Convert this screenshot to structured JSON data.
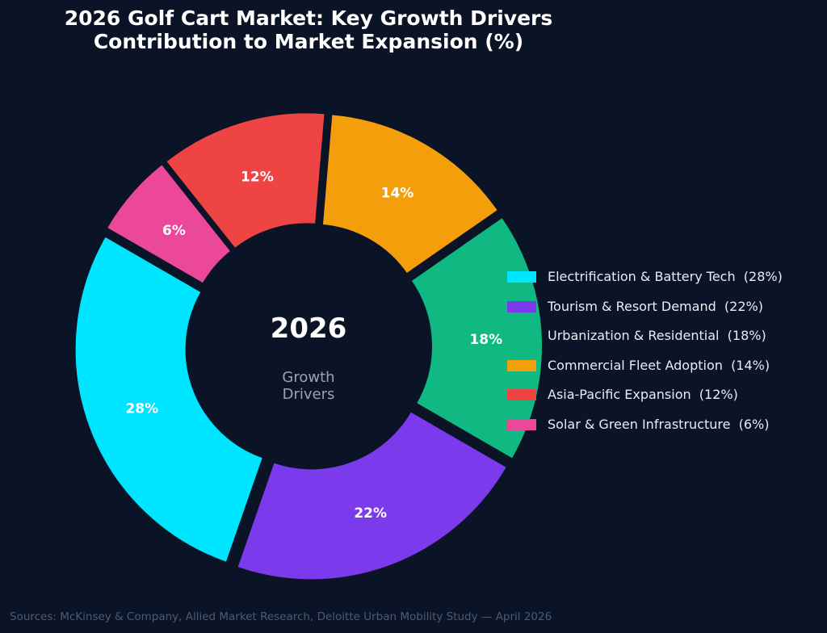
{
  "title_line1": "2026 Golf Cart Market: Key Growth Drivers",
  "title_line2": "Contribution to Market Expansion (%)",
  "center_title": "2026",
  "center_sub_line1": "Growth",
  "center_sub_line2": "Drivers",
  "source": "Sources: McKinsey & Company, Allied Market Research, Deloitte Urban Mobility Study — April 2026",
  "chart_data": {
    "type": "pie",
    "style": "donut-exploded",
    "start_angle_deg": 150,
    "direction": "counterclockwise",
    "legend_position": "right",
    "slices": [
      {
        "label": "Electrification & Battery Tech",
        "value": 28,
        "color": "#00e5ff",
        "pct_label": "28%",
        "legend_label": "Electrification & Battery Tech  (28%)"
      },
      {
        "label": "Tourism & Resort Demand",
        "value": 22,
        "color": "#7c3aed",
        "pct_label": "22%",
        "legend_label": "Tourism & Resort Demand  (22%)"
      },
      {
        "label": "Urbanization & Residential",
        "value": 18,
        "color": "#10b981",
        "pct_label": "18%",
        "legend_label": "Urbanization & Residential  (18%)"
      },
      {
        "label": "Commercial Fleet Adoption",
        "value": 14,
        "color": "#f59e0b",
        "pct_label": "14%",
        "legend_label": "Commercial Fleet Adoption  (14%)"
      },
      {
        "label": "Asia-Pacific Expansion",
        "value": 12,
        "color": "#ef4444",
        "pct_label": "12%",
        "legend_label": "Asia-Pacific Expansion  (12%)"
      },
      {
        "label": "Solar & Green Infrastructure",
        "value": 6,
        "color": "#ec4899",
        "pct_label": "6%",
        "legend_label": "Solar & Green Infrastructure  (6%)"
      }
    ]
  }
}
